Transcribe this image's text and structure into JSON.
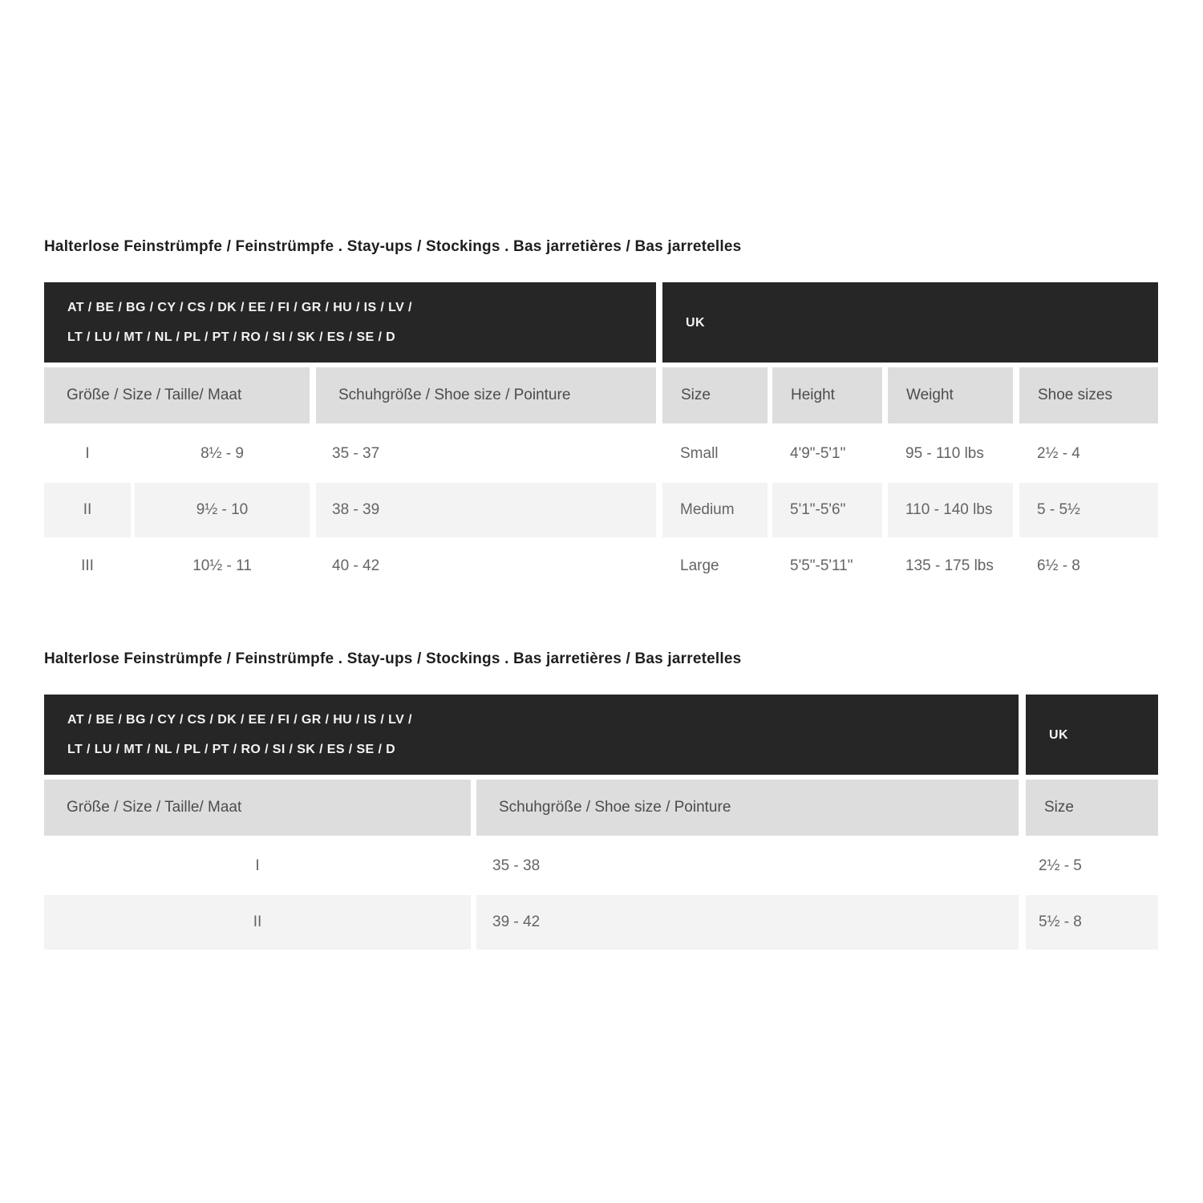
{
  "colors": {
    "region_bar_bg": "#262626",
    "region_bar_text": "#f3f3f3",
    "header_cell_bg": "#dddddd",
    "header_cell_text": "#4c4c4c",
    "row_alt_bg": "#f3f3f3",
    "row_text": "#646464",
    "title_text": "#1e1e1e"
  },
  "tables": [
    {
      "title": "Halterlose Feinstrümpfe / Feinstrümpfe . Stay-ups / Stockings . Bas jarretières / Bas jarretelles",
      "eu_region_line1": "AT / BE / BG / CY / CS / DK / EE / FI / GR / HU / IS / LV /",
      "eu_region_line2": "LT / LU / MT / NL / PL / PT / RO / SI / SK / ES / SE / D",
      "uk_region_label": "UK",
      "eu_column_headers": [
        "Größe / Size / Taille/ Maat",
        "Schuhgröße / Shoe size / Pointure"
      ],
      "uk_column_headers": [
        "Size",
        "Height",
        "Weight",
        "Shoe sizes"
      ],
      "rows": [
        {
          "numeral": "I",
          "groesse": "8½ - 9",
          "schuhgroesse": "35 - 37",
          "uk_size": "Small",
          "uk_height": "4'9\"-5'1\"",
          "uk_weight": "95 - 110 lbs",
          "uk_shoe_sizes": "2½ - 4"
        },
        {
          "numeral": "II",
          "groesse": "9½ - 10",
          "schuhgroesse": "38 - 39",
          "uk_size": "Medium",
          "uk_height": "5'1\"-5'6\"",
          "uk_weight": "110 - 140 lbs",
          "uk_shoe_sizes": "5 - 5½"
        },
        {
          "numeral": "III",
          "groesse": "10½ - 11",
          "schuhgroesse": "40 - 42",
          "uk_size": "Large",
          "uk_height": "5'5\"-5'11\"",
          "uk_weight": "135 - 175 lbs",
          "uk_shoe_sizes": "6½ - 8"
        }
      ]
    },
    {
      "title": "Halterlose Feinstrümpfe / Feinstrümpfe . Stay-ups / Stockings . Bas jarretières / Bas jarretelles",
      "eu_region_line1": "AT / BE / BG / CY / CS / DK / EE / FI / GR / HU / IS / LV /",
      "eu_region_line2": "LT / LU / MT / NL / PL / PT / RO / SI / SK / ES / SE / D",
      "uk_region_label": "UK",
      "eu_column_headers": [
        "Größe / Size / Taille/ Maat",
        "Schuhgröße / Shoe size / Pointure"
      ],
      "uk_column_headers": [
        "Size"
      ],
      "rows": [
        {
          "numeral": "I",
          "schuhgroesse": "35 - 38",
          "uk_size": "2½ - 5"
        },
        {
          "numeral": "II",
          "schuhgroesse": "39 - 42",
          "uk_size": "5½ - 8"
        }
      ]
    }
  ]
}
